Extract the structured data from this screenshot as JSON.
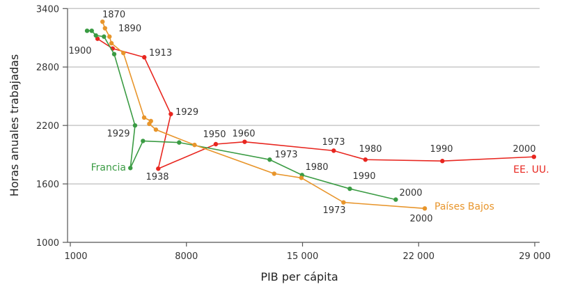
{
  "chart_data": {
    "type": "line",
    "xlabel": "PIB per cápita",
    "ylabel": "Horas anuales trabajadas",
    "xlim": [
      1000,
      29000
    ],
    "ylim": [
      1000,
      3400
    ],
    "xticks": [
      "1000",
      "8000",
      "15 000",
      "22 000",
      "29 000"
    ],
    "xtick_values": [
      1000,
      8000,
      15000,
      22000,
      29000
    ],
    "yticks": [
      "3400",
      "2800",
      "2200",
      "1600",
      "1000"
    ],
    "ytick_values": [
      3400,
      2800,
      2200,
      1600,
      1000
    ],
    "grid": "horizontal",
    "series": [
      {
        "name": "EE. UU.",
        "color": "#e8261f",
        "points": [
          [
            2640,
            3090
          ],
          [
            3550,
            2990
          ],
          [
            5460,
            2900
          ],
          [
            7060,
            2317
          ],
          [
            6300,
            1756
          ],
          [
            9770,
            2008
          ],
          [
            11510,
            2032
          ],
          [
            16880,
            1941
          ],
          [
            18790,
            1849
          ],
          [
            23430,
            1835
          ],
          [
            28950,
            1878
          ]
        ]
      },
      {
        "name": "Francia",
        "color": "#3a9b43",
        "points": [
          [
            2010,
            3172
          ],
          [
            2290,
            3172
          ],
          [
            2540,
            3124
          ],
          [
            3030,
            3112
          ],
          [
            3645,
            2932
          ],
          [
            4900,
            2200
          ],
          [
            4620,
            1763
          ],
          [
            5380,
            2041
          ],
          [
            7560,
            2025
          ],
          [
            13020,
            1849
          ],
          [
            14970,
            1691
          ],
          [
            17850,
            1550
          ],
          [
            20620,
            1439
          ]
        ]
      },
      {
        "name": "Países Bajos",
        "color": "#e8952b",
        "points": [
          [
            2940,
            3265
          ],
          [
            3090,
            3198
          ],
          [
            3360,
            3112
          ],
          [
            3480,
            3044
          ],
          [
            4200,
            2944
          ],
          [
            5450,
            2281
          ],
          [
            5860,
            2245
          ],
          [
            5760,
            2216
          ],
          [
            6160,
            2157
          ],
          [
            8490,
            2000
          ],
          [
            13290,
            1705
          ],
          [
            14930,
            1662
          ],
          [
            17470,
            1410
          ],
          [
            22370,
            1348
          ]
        ]
      }
    ],
    "annotations": [
      {
        "text": "1870",
        "series": "Países Bajos"
      },
      {
        "text": "1890",
        "series": "Países Bajos"
      },
      {
        "text": "1900",
        "series": "EE. UU."
      },
      {
        "text": "1913",
        "series": "EE. UU."
      },
      {
        "text": "1929",
        "series": "EE. UU."
      },
      {
        "text": "1929",
        "series": "Francia"
      },
      {
        "text": "1938",
        "series": "EE. UU."
      },
      {
        "text": "1950",
        "series": "EE. UU."
      },
      {
        "text": "1960",
        "series": "EE. UU."
      },
      {
        "text": "1973",
        "series": "EE. UU."
      },
      {
        "text": "1980",
        "series": "EE. UU."
      },
      {
        "text": "1990",
        "series": "EE. UU."
      },
      {
        "text": "2000",
        "series": "EE. UU."
      },
      {
        "text": "1973",
        "series": "Francia"
      },
      {
        "text": "1980",
        "series": "Francia"
      },
      {
        "text": "1990",
        "series": "Francia"
      },
      {
        "text": "2000",
        "series": "Francia"
      },
      {
        "text": "1973",
        "series": "Países Bajos"
      },
      {
        "text": "2000",
        "series": "Países Bajos"
      }
    ]
  }
}
